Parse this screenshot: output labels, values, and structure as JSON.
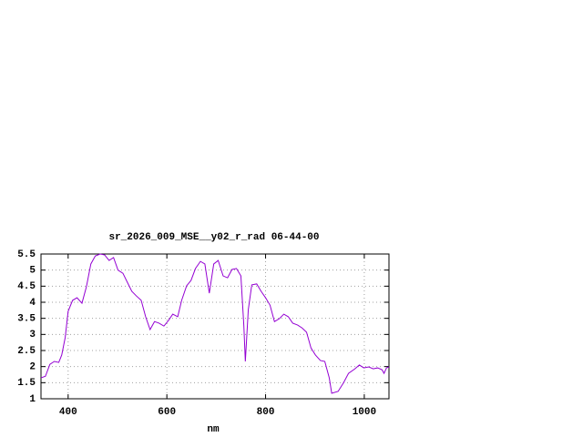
{
  "chart_data": {
    "type": "line",
    "title": "sr_2026_009_MSE__y02_r_rad 06-44-00",
    "x_label": "nm",
    "x": [
      345,
      354,
      363,
      372,
      381,
      387,
      394,
      400,
      409,
      418,
      428,
      437,
      446,
      455,
      465,
      474,
      483,
      492,
      501,
      511,
      520,
      529,
      538,
      548,
      557,
      566,
      575,
      584,
      594,
      603,
      612,
      622,
      630,
      640,
      649,
      658,
      668,
      677,
      686,
      695,
      704,
      714,
      723,
      732,
      741,
      750,
      756,
      759,
      765,
      772,
      782,
      791,
      800,
      809,
      818,
      828,
      837,
      846,
      855,
      865,
      874,
      883,
      892,
      901,
      911,
      920,
      929,
      934,
      947,
      958,
      968,
      981,
      990,
      999,
      1009,
      1018,
      1027,
      1036,
      1040,
      1045,
      1050
    ],
    "series": [
      {
        "color": "#9400d3",
        "values": [
          1.65,
          1.7,
          2.07,
          2.16,
          2.13,
          2.36,
          2.9,
          3.72,
          4.06,
          4.14,
          3.97,
          4.48,
          5.19,
          5.44,
          5.5,
          5.47,
          5.3,
          5.39,
          5.0,
          4.9,
          4.62,
          4.34,
          4.2,
          4.06,
          3.55,
          3.15,
          3.4,
          3.35,
          3.26,
          3.43,
          3.63,
          3.55,
          4.06,
          4.51,
          4.68,
          5.05,
          5.27,
          5.19,
          4.28,
          5.19,
          5.3,
          4.82,
          4.76,
          5.02,
          5.05,
          4.82,
          3.26,
          2.16,
          3.77,
          4.54,
          4.57,
          4.34,
          4.14,
          3.91,
          3.4,
          3.49,
          3.63,
          3.55,
          3.35,
          3.29,
          3.2,
          3.07,
          2.58,
          2.36,
          2.19,
          2.16,
          1.65,
          1.17,
          1.23,
          1.5,
          1.79,
          1.93,
          2.05,
          1.96,
          1.99,
          1.93,
          1.96,
          1.9,
          1.79,
          1.96,
          1.99
        ]
      }
    ],
    "xlim": [
      345,
      1050
    ],
    "ylim": [
      1,
      5.5
    ],
    "xticks": [
      400,
      600,
      800,
      1000
    ],
    "yticks": [
      1,
      1.5,
      2,
      2.5,
      3,
      3.5,
      4,
      4.5,
      5,
      5.5
    ],
    "grid": true
  }
}
